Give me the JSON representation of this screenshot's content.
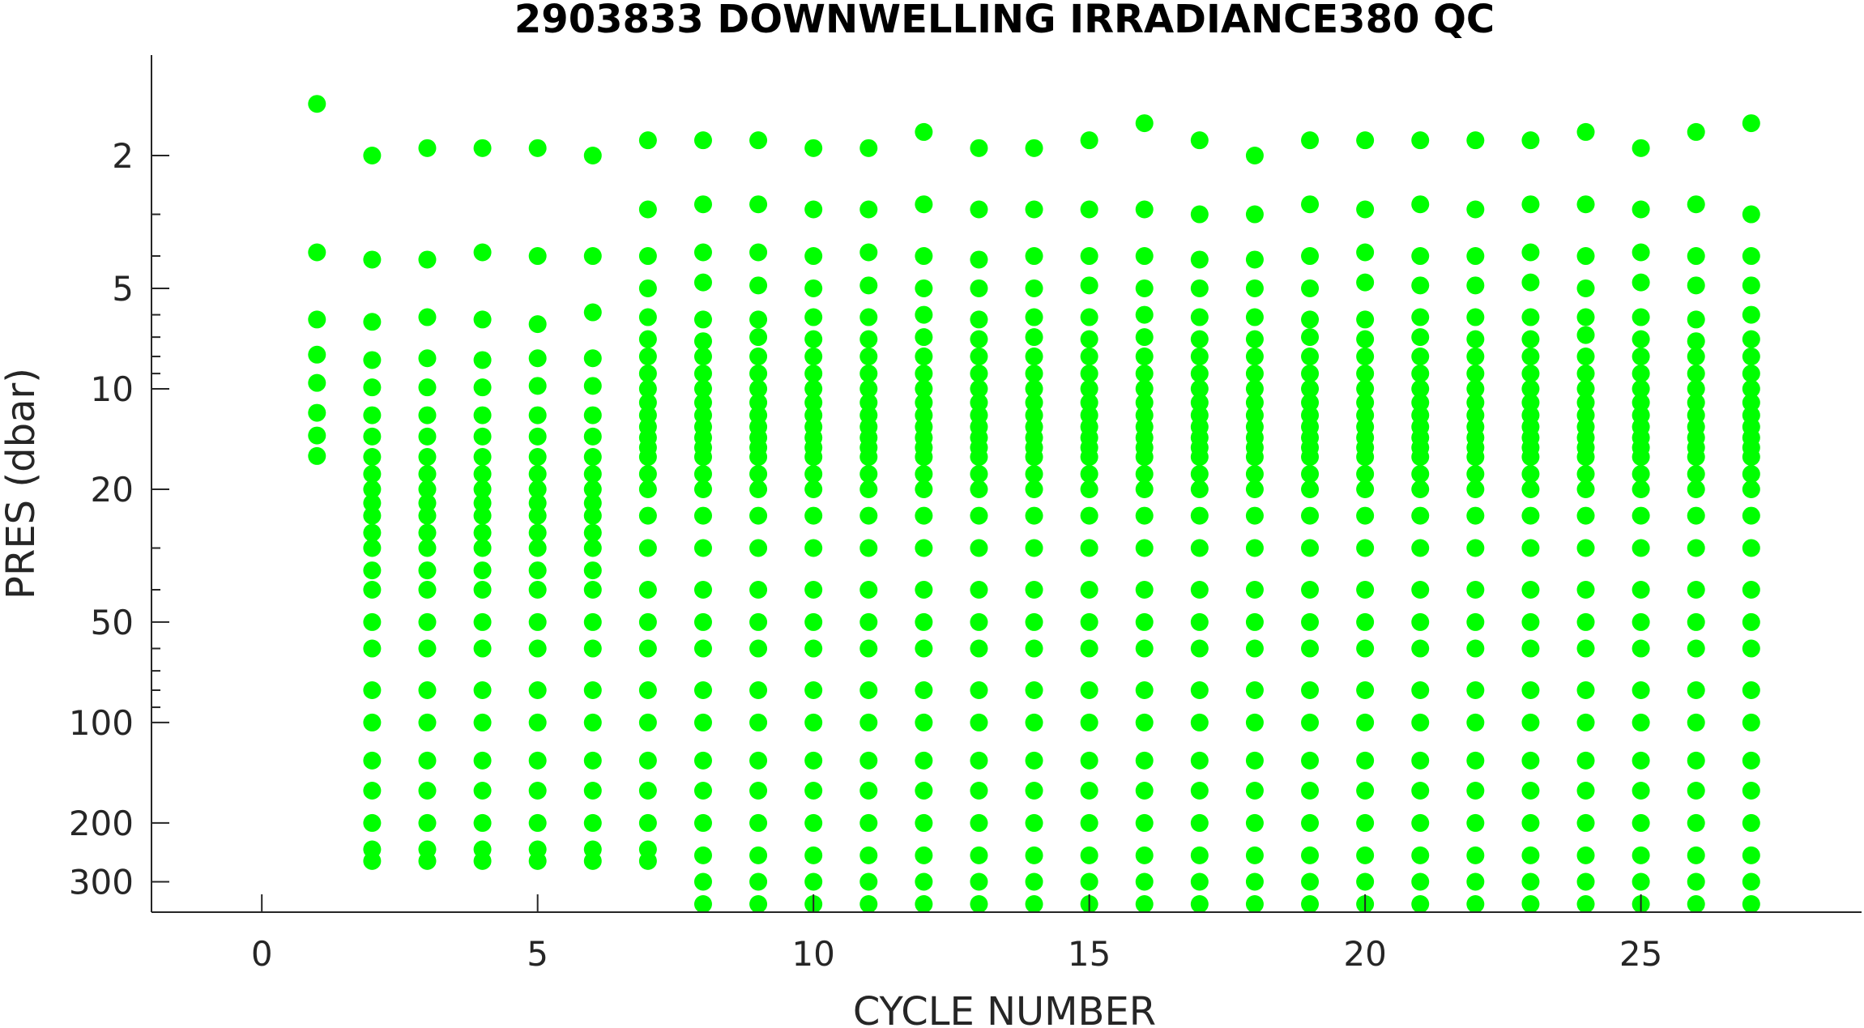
{
  "chart_data": {
    "type": "scatter",
    "title": "2903833  DOWNWELLING IRRADIANCE380 QC",
    "xlabel": "CYCLE NUMBER",
    "ylabel": "PRES (dbar)",
    "xlim": [
      -2,
      29
    ],
    "ylim": [
      1,
      370
    ],
    "y_scale": "log",
    "y_reversed": true,
    "grid": false,
    "x_ticks": [
      0,
      5,
      10,
      15,
      20,
      25
    ],
    "x_tick_labels": [
      "0",
      "5",
      "10",
      "15",
      "20",
      "25"
    ],
    "y_ticks": [
      2,
      5,
      10,
      20,
      50,
      100,
      200,
      300
    ],
    "y_tick_labels": [
      "2",
      "5",
      "10",
      "20",
      "50",
      "100",
      "200",
      "300"
    ],
    "y_minor_ticks": [
      3,
      4,
      6,
      7,
      8,
      9,
      30,
      40,
      60,
      70,
      80,
      90
    ],
    "marker_color": "#00ff00",
    "series": [
      {
        "values": [
          {
            "cycle": 1,
            "pres": [
              1.4,
              3.9,
              6.2,
              7.9,
              9.6,
              11.8,
              13.8,
              15.9
            ]
          },
          {
            "cycle": 2,
            "pres": [
              2.0,
              4.1,
              6.3,
              8.2,
              9.9,
              12.0,
              13.9,
              16.0,
              18.0,
              20.0,
              22.0,
              24.0,
              27.0,
              30.0,
              35.0,
              40.0,
              50.0,
              60.0,
              80.0,
              100.0,
              130.0,
              160.0,
              200.0,
              240.0,
              260.0
            ]
          },
          {
            "cycle": 3,
            "pres": [
              1.9,
              4.1,
              6.1,
              8.1,
              9.9,
              12.0,
              13.9,
              16.0,
              18.0,
              20.0,
              22.0,
              24.0,
              27.0,
              30.0,
              35.0,
              40.0,
              50.0,
              60.0,
              80.0,
              100.0,
              130.0,
              160.0,
              200.0,
              240.0,
              260.0
            ]
          },
          {
            "cycle": 4,
            "pres": [
              1.9,
              3.9,
              6.2,
              8.2,
              9.9,
              12.0,
              13.9,
              16.0,
              18.0,
              20.0,
              22.0,
              24.0,
              27.0,
              30.0,
              35.0,
              40.0,
              50.0,
              60.0,
              80.0,
              100.0,
              130.0,
              160.0,
              200.0,
              240.0,
              260.0
            ]
          },
          {
            "cycle": 5,
            "pres": [
              1.9,
              4.0,
              6.4,
              8.1,
              9.8,
              12.0,
              13.9,
              16.0,
              18.0,
              20.0,
              22.0,
              24.0,
              27.0,
              30.0,
              35.0,
              40.0,
              50.0,
              60.0,
              80.0,
              100.0,
              130.0,
              160.0,
              200.0,
              240.0,
              260.0
            ]
          },
          {
            "cycle": 6,
            "pres": [
              2.0,
              4.0,
              5.9,
              8.1,
              9.8,
              12.0,
              13.9,
              16.0,
              18.0,
              20.0,
              22.0,
              24.0,
              27.0,
              30.0,
              35.0,
              40.0,
              50.0,
              60.0,
              80.0,
              100.0,
              130.0,
              160.0,
              200.0,
              240.0,
              260.0
            ]
          },
          {
            "cycle": 7,
            "pres": [
              1.8,
              2.9,
              4.0,
              5.0,
              6.1,
              7.1,
              8.0,
              9.0,
              10.0,
              11.0,
              12.0,
              13.0,
              14.0,
              15.0,
              16.0,
              18.0,
              20.0,
              24.0,
              30.0,
              40.0,
              50.0,
              60.0,
              80.0,
              100.0,
              130.0,
              160.0,
              200.0,
              240.0,
              260.0
            ]
          },
          {
            "cycle": 8,
            "pres": [
              1.8,
              2.8,
              3.9,
              4.8,
              6.2,
              7.2,
              8.0,
              9.0,
              10.0,
              11.0,
              12.0,
              13.0,
              14.0,
              15.0,
              16.0,
              18.0,
              20.0,
              24.0,
              30.0,
              40.0,
              50.0,
              60.0,
              80.0,
              100.0,
              130.0,
              160.0,
              200.0,
              250.0,
              300.0,
              350.0
            ]
          },
          {
            "cycle": 9,
            "pres": [
              1.8,
              2.8,
              3.9,
              4.9,
              6.2,
              7.0,
              8.0,
              9.0,
              10.0,
              11.0,
              12.0,
              13.0,
              14.0,
              15.0,
              16.0,
              18.0,
              20.0,
              24.0,
              30.0,
              40.0,
              50.0,
              60.0,
              80.0,
              100.0,
              130.0,
              160.0,
              200.0,
              250.0,
              300.0,
              350.0
            ]
          },
          {
            "cycle": 10,
            "pres": [
              1.9,
              2.9,
              4.0,
              5.0,
              6.1,
              7.1,
              8.0,
              9.0,
              10.0,
              11.0,
              12.0,
              13.0,
              14.0,
              15.0,
              16.0,
              18.0,
              20.0,
              24.0,
              30.0,
              40.0,
              50.0,
              60.0,
              80.0,
              100.0,
              130.0,
              160.0,
              200.0,
              250.0,
              300.0,
              350.0
            ]
          },
          {
            "cycle": 11,
            "pres": [
              1.9,
              2.9,
              3.9,
              4.9,
              6.1,
              7.1,
              8.0,
              9.0,
              10.0,
              11.0,
              12.0,
              13.0,
              14.0,
              15.0,
              16.0,
              18.0,
              20.0,
              24.0,
              30.0,
              40.0,
              50.0,
              60.0,
              80.0,
              100.0,
              130.0,
              160.0,
              200.0,
              250.0,
              300.0,
              350.0
            ]
          },
          {
            "cycle": 12,
            "pres": [
              1.7,
              2.8,
              4.0,
              5.0,
              6.0,
              7.0,
              8.0,
              9.0,
              10.0,
              11.0,
              12.0,
              13.0,
              14.0,
              15.0,
              16.0,
              18.0,
              20.0,
              24.0,
              30.0,
              40.0,
              50.0,
              60.0,
              80.0,
              100.0,
              130.0,
              160.0,
              200.0,
              250.0,
              300.0,
              350.0
            ]
          },
          {
            "cycle": 13,
            "pres": [
              1.9,
              2.9,
              4.1,
              5.0,
              6.2,
              7.1,
              8.0,
              9.0,
              10.0,
              11.0,
              12.0,
              13.0,
              14.0,
              15.0,
              16.0,
              18.0,
              20.0,
              24.0,
              30.0,
              40.0,
              50.0,
              60.0,
              80.0,
              100.0,
              130.0,
              160.0,
              200.0,
              250.0,
              300.0,
              350.0
            ]
          },
          {
            "cycle": 14,
            "pres": [
              1.9,
              2.9,
              4.0,
              5.0,
              6.1,
              7.0,
              8.0,
              9.0,
              10.0,
              11.0,
              12.0,
              13.0,
              14.0,
              15.0,
              16.0,
              18.0,
              20.0,
              24.0,
              30.0,
              40.0,
              50.0,
              60.0,
              80.0,
              100.0,
              130.0,
              160.0,
              200.0,
              250.0,
              300.0,
              350.0
            ]
          },
          {
            "cycle": 15,
            "pres": [
              1.8,
              2.9,
              4.0,
              4.9,
              6.1,
              7.1,
              8.0,
              9.0,
              10.0,
              11.0,
              12.0,
              13.0,
              14.0,
              15.0,
              16.0,
              18.0,
              20.0,
              24.0,
              30.0,
              40.0,
              50.0,
              60.0,
              80.0,
              100.0,
              130.0,
              160.0,
              200.0,
              250.0,
              300.0,
              350.0
            ]
          },
          {
            "cycle": 16,
            "pres": [
              1.6,
              2.9,
              4.0,
              5.0,
              6.0,
              7.0,
              8.0,
              9.0,
              10.0,
              11.0,
              12.0,
              13.0,
              14.0,
              15.0,
              16.0,
              18.0,
              20.0,
              24.0,
              30.0,
              40.0,
              50.0,
              60.0,
              80.0,
              100.0,
              130.0,
              160.0,
              200.0,
              250.0,
              300.0,
              350.0
            ]
          },
          {
            "cycle": 17,
            "pres": [
              1.8,
              3.0,
              4.1,
              5.0,
              6.1,
              7.1,
              8.0,
              9.0,
              10.0,
              11.0,
              12.0,
              13.0,
              14.0,
              15.0,
              16.0,
              18.0,
              20.0,
              24.0,
              30.0,
              40.0,
              50.0,
              60.0,
              80.0,
              100.0,
              130.0,
              160.0,
              200.0,
              250.0,
              300.0,
              350.0
            ]
          },
          {
            "cycle": 18,
            "pres": [
              2.0,
              3.0,
              4.1,
              5.0,
              6.1,
              7.1,
              8.0,
              9.0,
              10.0,
              11.0,
              12.0,
              13.0,
              14.0,
              15.0,
              16.0,
              18.0,
              20.0,
              24.0,
              30.0,
              40.0,
              50.0,
              60.0,
              80.0,
              100.0,
              130.0,
              160.0,
              200.0,
              250.0,
              300.0,
              350.0
            ]
          },
          {
            "cycle": 19,
            "pres": [
              1.8,
              2.8,
              4.0,
              5.0,
              6.2,
              7.0,
              8.0,
              9.0,
              10.0,
              11.0,
              12.0,
              13.0,
              14.0,
              15.0,
              16.0,
              18.0,
              20.0,
              24.0,
              30.0,
              40.0,
              50.0,
              60.0,
              80.0,
              100.0,
              130.0,
              160.0,
              200.0,
              250.0,
              300.0,
              350.0
            ]
          },
          {
            "cycle": 20,
            "pres": [
              1.8,
              2.9,
              3.9,
              4.8,
              6.2,
              7.1,
              8.0,
              9.0,
              10.0,
              11.0,
              12.0,
              13.0,
              14.0,
              15.0,
              16.0,
              18.0,
              20.0,
              24.0,
              30.0,
              40.0,
              50.0,
              60.0,
              80.0,
              100.0,
              130.0,
              160.0,
              200.0,
              250.0,
              300.0,
              350.0
            ]
          },
          {
            "cycle": 21,
            "pres": [
              1.8,
              2.8,
              4.0,
              4.9,
              6.1,
              7.0,
              8.0,
              9.0,
              10.0,
              11.0,
              12.0,
              13.0,
              14.0,
              15.0,
              16.0,
              18.0,
              20.0,
              24.0,
              30.0,
              40.0,
              50.0,
              60.0,
              80.0,
              100.0,
              130.0,
              160.0,
              200.0,
              250.0,
              300.0,
              350.0
            ]
          },
          {
            "cycle": 22,
            "pres": [
              1.8,
              2.9,
              4.0,
              4.9,
              6.1,
              7.1,
              8.0,
              9.0,
              10.0,
              11.0,
              12.0,
              13.0,
              14.0,
              15.0,
              16.0,
              18.0,
              20.0,
              24.0,
              30.0,
              40.0,
              50.0,
              60.0,
              80.0,
              100.0,
              130.0,
              160.0,
              200.0,
              250.0,
              300.0,
              350.0
            ]
          },
          {
            "cycle": 23,
            "pres": [
              1.8,
              2.8,
              3.9,
              4.8,
              6.1,
              7.1,
              8.0,
              9.0,
              10.0,
              11.0,
              12.0,
              13.0,
              14.0,
              15.0,
              16.0,
              18.0,
              20.0,
              24.0,
              30.0,
              40.0,
              50.0,
              60.0,
              80.0,
              100.0,
              130.0,
              160.0,
              200.0,
              250.0,
              300.0,
              350.0
            ]
          },
          {
            "cycle": 24,
            "pres": [
              1.7,
              2.8,
              4.0,
              5.0,
              6.1,
              6.9,
              8.0,
              9.0,
              10.0,
              11.0,
              12.0,
              13.0,
              14.0,
              15.0,
              16.0,
              18.0,
              20.0,
              24.0,
              30.0,
              40.0,
              50.0,
              60.0,
              80.0,
              100.0,
              130.0,
              160.0,
              200.0,
              250.0,
              300.0,
              350.0
            ]
          },
          {
            "cycle": 25,
            "pres": [
              1.9,
              2.9,
              3.9,
              4.8,
              6.1,
              7.1,
              8.0,
              9.0,
              10.0,
              11.0,
              12.0,
              13.0,
              14.0,
              15.0,
              16.0,
              18.0,
              20.0,
              24.0,
              30.0,
              40.0,
              50.0,
              60.0,
              80.0,
              100.0,
              130.0,
              160.0,
              200.0,
              250.0,
              300.0,
              350.0
            ]
          },
          {
            "cycle": 26,
            "pres": [
              1.7,
              2.8,
              4.0,
              4.9,
              6.2,
              7.2,
              8.0,
              9.0,
              10.0,
              11.0,
              12.0,
              13.0,
              14.0,
              15.0,
              16.0,
              18.0,
              20.0,
              24.0,
              30.0,
              40.0,
              50.0,
              60.0,
              80.0,
              100.0,
              130.0,
              160.0,
              200.0,
              250.0,
              300.0,
              350.0
            ]
          },
          {
            "cycle": 27,
            "pres": [
              1.6,
              3.0,
              4.0,
              4.9,
              6.0,
              7.1,
              8.0,
              9.0,
              10.0,
              11.0,
              12.0,
              13.0,
              14.0,
              15.0,
              16.0,
              18.0,
              20.0,
              24.0,
              30.0,
              40.0,
              50.0,
              60.0,
              80.0,
              100.0,
              130.0,
              160.0,
              200.0,
              250.0,
              300.0,
              350.0
            ]
          }
        ]
      }
    ]
  }
}
